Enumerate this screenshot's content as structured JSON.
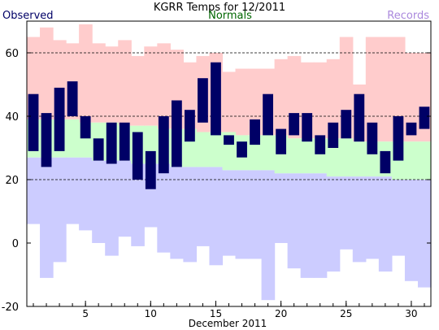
{
  "chart_data": {
    "type": "bar",
    "title": "KGRR Temps for 12/2011",
    "xlabel": "December 2011",
    "ylabel": "",
    "xlim": [
      0.5,
      31.5
    ],
    "ylim": [
      -20,
      70
    ],
    "grid": "dashed horizontal at 20, 40, 60",
    "legend": [
      {
        "name": "Observed",
        "color": "#000066",
        "position": "top-left"
      },
      {
        "name": "Normals",
        "color": "#006600",
        "position": "top-center"
      },
      {
        "name": "Records",
        "color": "#aa88dd",
        "position": "top-right"
      }
    ],
    "x_ticks": [
      5,
      10,
      15,
      20,
      25,
      30
    ],
    "x_minor_ticks": [
      1,
      2,
      3,
      4,
      5,
      6,
      7,
      8,
      9,
      10,
      11,
      12,
      13,
      14,
      15,
      16,
      17,
      18,
      19,
      20,
      21,
      22,
      23,
      24,
      25,
      26,
      27,
      28,
      29,
      30,
      31
    ],
    "y_ticks": [
      -20,
      0,
      20,
      40,
      60
    ],
    "days": [
      1,
      2,
      3,
      4,
      5,
      6,
      7,
      8,
      9,
      10,
      11,
      12,
      13,
      14,
      15,
      16,
      17,
      18,
      19,
      20,
      21,
      22,
      23,
      24,
      25,
      26,
      27,
      28,
      29,
      30,
      31
    ],
    "series": [
      {
        "name": "Observed",
        "low": [
          29,
          24,
          29,
          40,
          33,
          26,
          25,
          26,
          20,
          17,
          22,
          24,
          32,
          38,
          34,
          31,
          27,
          31,
          34,
          28,
          34,
          32,
          28,
          30,
          33,
          32,
          28,
          22,
          26,
          34,
          36
        ],
        "high": [
          47,
          41,
          49,
          51,
          40,
          33,
          38,
          38,
          35,
          29,
          40,
          45,
          42,
          52,
          57,
          34,
          32,
          39,
          47,
          36,
          41,
          41,
          34,
          38,
          42,
          47,
          38,
          29,
          40,
          38,
          43
        ]
      },
      {
        "name": "Normals",
        "low": [
          27,
          27,
          27,
          27,
          27,
          26,
          26,
          26,
          25,
          25,
          25,
          24,
          24,
          24,
          24,
          23,
          23,
          23,
          23,
          22,
          22,
          22,
          22,
          21,
          21,
          21,
          21,
          21,
          20,
          20,
          20
        ],
        "high": [
          39,
          39,
          39,
          39,
          38,
          38,
          38,
          37,
          37,
          37,
          36,
          36,
          36,
          35,
          35,
          35,
          34,
          34,
          34,
          34,
          33,
          33,
          33,
          33,
          33,
          32,
          32,
          32,
          32,
          32,
          32
        ]
      },
      {
        "name": "Records",
        "low": [
          6,
          -11,
          -6,
          6,
          4,
          0,
          -4,
          2,
          -1,
          5,
          -3,
          -5,
          -6,
          -1,
          -7,
          -4,
          -5,
          -5,
          -18,
          0,
          -8,
          -11,
          -11,
          -9,
          -2,
          -6,
          -5,
          -9,
          -4,
          -12,
          -14
        ],
        "high": [
          65,
          68,
          64,
          63,
          69,
          63,
          62,
          64,
          59,
          62,
          63,
          61,
          57,
          59,
          60,
          54,
          55,
          55,
          55,
          58,
          59,
          57,
          57,
          58,
          65,
          50,
          65,
          65,
          65,
          60,
          60
        ]
      }
    ]
  }
}
